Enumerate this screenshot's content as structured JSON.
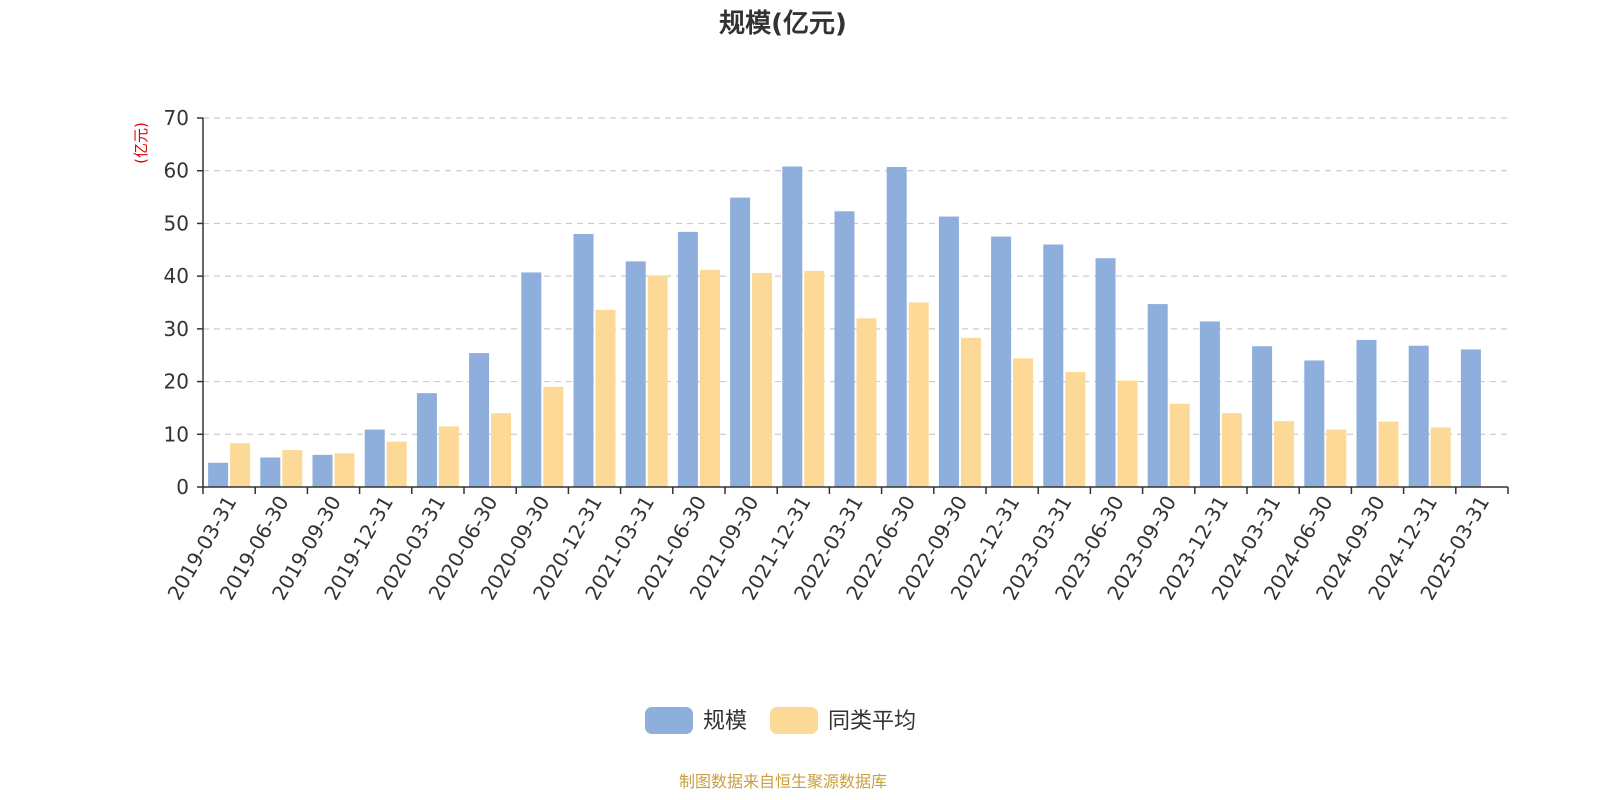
{
  "chart_data": {
    "type": "bar",
    "title": "规模(亿元)",
    "ylabel": "(亿元)",
    "xlabel": "",
    "ylim": [
      0,
      70
    ],
    "yticks": [
      0,
      10,
      20,
      30,
      40,
      50,
      60,
      70
    ],
    "grid": true,
    "legend_position": "bottom",
    "categories": [
      "2019-03-31",
      "2019-06-30",
      "2019-09-30",
      "2019-12-31",
      "2020-03-31",
      "2020-06-30",
      "2020-09-30",
      "2020-12-31",
      "2021-03-31",
      "2021-06-30",
      "2021-09-30",
      "2021-12-31",
      "2022-03-31",
      "2022-06-30",
      "2022-09-30",
      "2022-12-31",
      "2023-03-31",
      "2023-06-30",
      "2023-09-30",
      "2023-12-31",
      "2024-03-31",
      "2024-06-30",
      "2024-09-30",
      "2024-12-31",
      "2025-03-31"
    ],
    "series": [
      {
        "name": "规模",
        "color": "#8eaedb",
        "values": [
          4.6,
          5.6,
          6.1,
          10.9,
          17.8,
          25.4,
          40.7,
          48.0,
          42.8,
          48.4,
          54.9,
          60.8,
          52.3,
          60.7,
          51.3,
          47.5,
          46.0,
          43.4,
          34.7,
          31.4,
          26.7,
          24.0,
          27.9,
          26.8,
          26.1
        ]
      },
      {
        "name": "同类平均",
        "color": "#fdd998",
        "values": [
          8.3,
          7.0,
          6.4,
          8.6,
          11.5,
          14.0,
          19.0,
          33.6,
          40.1,
          41.2,
          40.6,
          41.0,
          32.0,
          35.0,
          28.3,
          24.4,
          21.8,
          20.2,
          15.8,
          14.0,
          12.5,
          10.9,
          12.4,
          11.3,
          null
        ]
      }
    ]
  },
  "footer": {
    "source": "制图数据来自恒生聚源数据库"
  }
}
